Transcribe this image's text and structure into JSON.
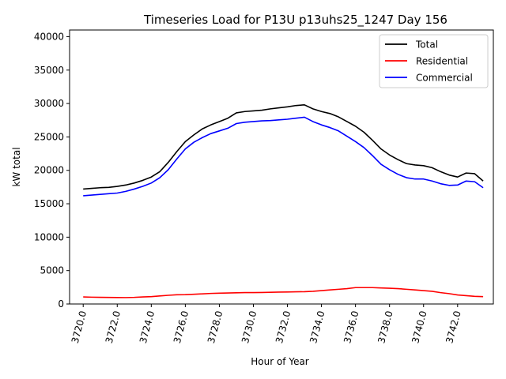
{
  "chart_data": {
    "type": "line",
    "title": "Timeseries Load for P13U p13uhs25_1247  Day 156",
    "xlabel": "Hour of Year",
    "ylabel": "kW total",
    "xlim": [
      3719.2,
      3744.1
    ],
    "ylim": [
      0,
      41000
    ],
    "xticks": [
      3720,
      3722,
      3724,
      3726,
      3728,
      3730,
      3732,
      3734,
      3736,
      3738,
      3740,
      3742
    ],
    "xtick_labels": [
      "3720.0",
      "3722.0",
      "3724.0",
      "3726.0",
      "3728.0",
      "3730.0",
      "3732.0",
      "3734.0",
      "3736.0",
      "3738.0",
      "3740.0",
      "3742.0"
    ],
    "yticks": [
      0,
      5000,
      10000,
      15000,
      20000,
      25000,
      30000,
      35000,
      40000
    ],
    "ytick_labels": [
      "0",
      "5000",
      "10000",
      "15000",
      "20000",
      "25000",
      "30000",
      "35000",
      "40000"
    ],
    "grid": false,
    "legend_position": "top-right",
    "x": [
      3720,
      3720.5,
      3721,
      3721.5,
      3722,
      3722.5,
      3723,
      3723.5,
      3724,
      3724.5,
      3725,
      3725.5,
      3726,
      3726.5,
      3727,
      3727.5,
      3728,
      3728.5,
      3729,
      3729.5,
      3730,
      3730.5,
      3731,
      3731.5,
      3732,
      3732.5,
      3733,
      3733.5,
      3734,
      3734.5,
      3735,
      3735.5,
      3736,
      3736.5,
      3737,
      3737.5,
      3738,
      3738.5,
      3739,
      3739.5,
      3740,
      3740.5,
      3741,
      3741.5,
      3742,
      3742.5,
      3743,
      3743.5
    ],
    "series": [
      {
        "name": "Total",
        "color": "#000000",
        "values": [
          17200,
          17300,
          17400,
          17450,
          17600,
          17800,
          18100,
          18500,
          19000,
          19800,
          21200,
          22800,
          24300,
          25300,
          26200,
          26800,
          27300,
          27800,
          28600,
          28800,
          28900,
          29000,
          29200,
          29350,
          29500,
          29700,
          29800,
          29200,
          28800,
          28500,
          28000,
          27300,
          26600,
          25700,
          24500,
          23200,
          22300,
          21600,
          21000,
          20800,
          20700,
          20400,
          19800,
          19300,
          19000,
          19600,
          19500,
          18400
        ]
      },
      {
        "name": "Residential",
        "color": "#ff0000",
        "values": [
          1050,
          1020,
          1000,
          980,
          970,
          960,
          990,
          1050,
          1100,
          1200,
          1300,
          1380,
          1400,
          1450,
          1520,
          1580,
          1620,
          1650,
          1680,
          1700,
          1700,
          1720,
          1750,
          1780,
          1800,
          1820,
          1840,
          1900,
          2000,
          2100,
          2200,
          2300,
          2450,
          2450,
          2450,
          2400,
          2350,
          2300,
          2200,
          2100,
          2000,
          1900,
          1700,
          1550,
          1350,
          1250,
          1150,
          1100
        ]
      },
      {
        "name": "Commercial",
        "color": "#0000ff",
        "values": [
          16200,
          16300,
          16400,
          16500,
          16600,
          16850,
          17200,
          17600,
          18100,
          18900,
          20100,
          21700,
          23200,
          24200,
          24900,
          25500,
          25900,
          26300,
          27000,
          27200,
          27300,
          27400,
          27450,
          27550,
          27650,
          27800,
          27950,
          27300,
          26800,
          26400,
          25900,
          25100,
          24300,
          23400,
          22200,
          20900,
          20100,
          19400,
          18900,
          18700,
          18700,
          18400,
          18000,
          17750,
          17800,
          18400,
          18300,
          17400
        ]
      }
    ]
  }
}
